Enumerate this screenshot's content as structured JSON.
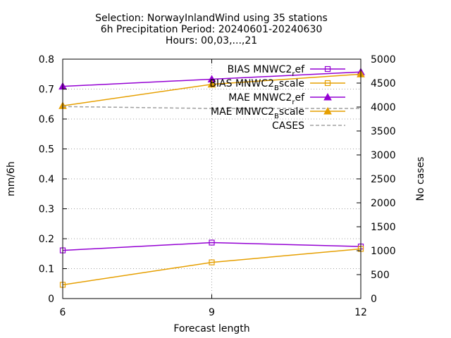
{
  "chart_data": {
    "type": "line",
    "title_lines": [
      "Selection: NorwayInlandWind using    35 stations",
      "6h Precipitation   Period: 20240601-20240630",
      "Hours: 00,03,...,21"
    ],
    "xlabel": "Forecast length",
    "ylabel": "mm/6h",
    "y2label": "No cases",
    "x": [
      6,
      9,
      12
    ],
    "xlim": [
      6,
      12
    ],
    "xticks": [
      6,
      9,
      12
    ],
    "ylim": [
      0,
      0.8
    ],
    "yticks": [
      0,
      0.1,
      0.2,
      0.3,
      0.4,
      0.5,
      0.6,
      0.7,
      0.8
    ],
    "y2lim": [
      0,
      5000
    ],
    "y2ticks": [
      0,
      500,
      1000,
      1500,
      2000,
      2500,
      3000,
      3500,
      4000,
      4500,
      5000
    ],
    "grid": true,
    "legend_position": "top-right",
    "series": [
      {
        "name": "BIAS MNWC2_ref",
        "legend_main": "BIAS MNWC2",
        "legend_sub": "r",
        "legend_rest": "ef",
        "axis": "y",
        "color": "#9400d3",
        "marker": "square",
        "values": [
          0.161,
          0.187,
          0.174
        ]
      },
      {
        "name": "BIAS MNWC2_Bscale",
        "legend_main": "BIAS MNWC2",
        "legend_sub": "B",
        "legend_rest": "scale",
        "axis": "y",
        "color": "#e69f00",
        "marker": "square",
        "values": [
          0.046,
          0.121,
          0.166
        ]
      },
      {
        "name": "MAE MNWC2_ref",
        "legend_main": "MAE MNWC2",
        "legend_sub": "r",
        "legend_rest": "ef",
        "axis": "y",
        "color": "#9400d3",
        "marker": "triangle",
        "values": [
          0.709,
          0.733,
          0.757
        ]
      },
      {
        "name": "MAE MNWC2_Bscale",
        "legend_main": "MAE MNWC2",
        "legend_sub": "B",
        "legend_rest": "scale",
        "axis": "y",
        "color": "#e69f00",
        "marker": "triangle",
        "values": [
          0.644,
          0.716,
          0.75
        ]
      },
      {
        "name": "CASES",
        "legend_main": "CASES",
        "legend_sub": "",
        "legend_rest": "",
        "axis": "y2",
        "color": "#a0a0a0",
        "marker": "none",
        "dashed": true,
        "values": [
          4010,
          3970,
          3970
        ]
      }
    ]
  }
}
